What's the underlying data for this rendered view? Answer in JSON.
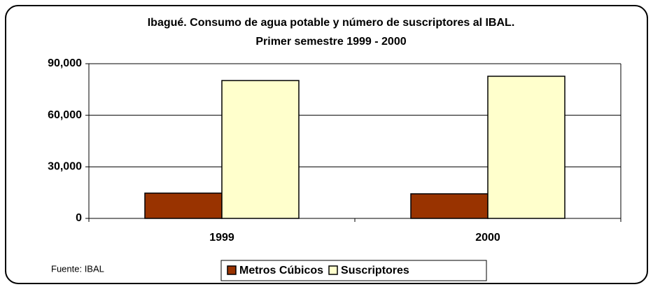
{
  "chart_data": {
    "type": "bar",
    "title": "Ibagué. Consumo de agua potable y número de suscriptores al IBAL.",
    "subtitle": "Primer semestre 1999 - 2000",
    "categories": [
      "1999",
      "2000"
    ],
    "series": [
      {
        "name": "Metros Cúbicos",
        "color": "#993300",
        "values": [
          14700,
          14300
        ]
      },
      {
        "name": "Suscriptores",
        "color": "#ffffcc",
        "values": [
          80200,
          82700
        ]
      }
    ],
    "ylim": [
      0,
      90000
    ],
    "yticks": [
      0,
      {
        "value": 30000,
        "label": "30,000"
      },
      {
        "value": 60000,
        "label": "60,000"
      },
      {
        "value": 90000,
        "label": "90,000"
      }
    ],
    "grid": true,
    "annotation": "Fuente: IBAL",
    "legend": "bottom"
  }
}
